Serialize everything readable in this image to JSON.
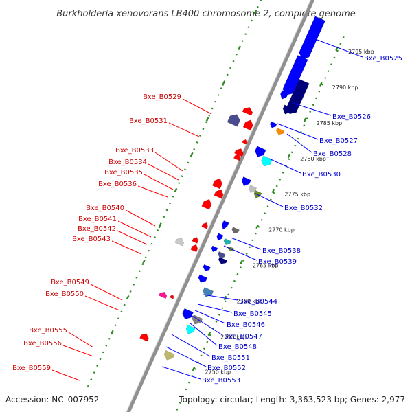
{
  "title": "Burkholderia xenovorans LB400 chromosome 2, complete genome",
  "footer": {
    "accession": "Accession: NC_007952",
    "stats": "Topology: circular; Length: 3,363,523 bp; Genes: 2,977"
  },
  "colors": {
    "backbone": "#909090",
    "tick_major": "#2e8b22",
    "tick_minor": "#2e8b22",
    "forward": "#ff0000",
    "reverse": "#0000ff",
    "forward_label": "#cc0000",
    "reverse_label": "#0000cc"
  },
  "ticks": [
    {
      "label": "2795 kbp"
    },
    {
      "label": "2790 kbp"
    },
    {
      "label": "2785 kbp"
    },
    {
      "label": "2780 kbp"
    },
    {
      "label": "2775 kbp"
    },
    {
      "label": "2770 kbp"
    },
    {
      "label": "2765 kbp"
    },
    {
      "label": "2760 kbp"
    },
    {
      "label": "2755 kbp"
    },
    {
      "label": "2750 kbp"
    }
  ],
  "labels_left": [
    "Bxe_B0529",
    "Bxe_B0531",
    "Bxe_B0533",
    "Bxe_B0534",
    "Bxe_B0535",
    "Bxe_B0536",
    "Bxe_B0540",
    "Bxe_B0541",
    "Bxe_B0542",
    "Bxe_B0543",
    "Bxe_B0549",
    "Bxe_B0550",
    "Bxe_B0555",
    "Bxe_B0556",
    "Bxe_B0559"
  ],
  "labels_right": [
    "Bxe_B0525",
    "Bxe_B0526",
    "Bxe_B0527",
    "Bxe_B0528",
    "Bxe_B0530",
    "Bxe_B0532",
    "Bxe_B0538",
    "Bxe_B0539",
    "Bxe_B0544",
    "Bxe_B0545",
    "Bxe_B0546",
    "Bxe_B0547",
    "Bxe_B0548",
    "Bxe_B0551",
    "Bxe_B0552",
    "Bxe_B0553"
  ],
  "genes": [
    {
      "strand": "forward",
      "color": "#ff0000"
    },
    {
      "strand": "forward",
      "color": "#ff0000"
    },
    {
      "strand": "forward",
      "color": "#ff0000"
    },
    {
      "strand": "forward",
      "color": "#ff0000"
    },
    {
      "strand": "forward",
      "color": "#ff0000"
    },
    {
      "strand": "forward",
      "color": "#ff0000"
    },
    {
      "strand": "forward",
      "color": "#ff0000"
    },
    {
      "strand": "forward",
      "color": "#ff0000"
    },
    {
      "strand": "forward",
      "color": "#ff0000"
    },
    {
      "strand": "forward",
      "color": "#ff0000"
    },
    {
      "strand": "forward",
      "color": "#ff0000"
    },
    {
      "strand": "forward",
      "color": "#c8c8c8"
    },
    {
      "strand": "forward",
      "color": "#ff0000"
    },
    {
      "strand": "forward",
      "color": "#ff1493"
    },
    {
      "strand": "forward",
      "color": "#ff0000"
    },
    {
      "strand": "forward",
      "color": "#4b4b8f"
    },
    {
      "strand": "reverse",
      "color": "#0000ff"
    },
    {
      "strand": "reverse",
      "color": "#0000ff"
    },
    {
      "strand": "reverse",
      "color": "#00007a"
    },
    {
      "strand": "reverse",
      "color": "#0000ff"
    },
    {
      "strand": "reverse",
      "color": "#00007a"
    },
    {
      "strand": "reverse",
      "color": "#0000ff"
    },
    {
      "strand": "reverse",
      "color": "#ff8c00"
    },
    {
      "strand": "reverse",
      "color": "#0000ff"
    },
    {
      "strand": "reverse",
      "color": "#00ffff"
    },
    {
      "strand": "reverse",
      "color": "#0000ff"
    },
    {
      "strand": "reverse",
      "color": "#c0c0c0"
    },
    {
      "strand": "reverse",
      "color": "#6b8e23"
    },
    {
      "strand": "reverse",
      "color": "#0000ff"
    },
    {
      "strand": "reverse",
      "color": "#696969"
    },
    {
      "strand": "reverse",
      "color": "#0000ff"
    },
    {
      "strand": "reverse",
      "color": "#20b2aa"
    },
    {
      "strand": "reverse",
      "color": "#6b8e23"
    },
    {
      "strand": "reverse",
      "color": "#0000ff"
    },
    {
      "strand": "reverse",
      "color": "#4b4b8f"
    },
    {
      "strand": "reverse",
      "color": "#00007a"
    },
    {
      "strand": "reverse",
      "color": "#0000ff"
    },
    {
      "strand": "reverse",
      "color": "#0000ff"
    },
    {
      "strand": "reverse",
      "color": "#4682b4"
    },
    {
      "strand": "reverse",
      "color": "#0000ff"
    },
    {
      "strand": "reverse",
      "color": "#808080"
    },
    {
      "strand": "reverse",
      "color": "#00ffff"
    },
    {
      "strand": "reverse",
      "color": "#bdb76b"
    }
  ]
}
